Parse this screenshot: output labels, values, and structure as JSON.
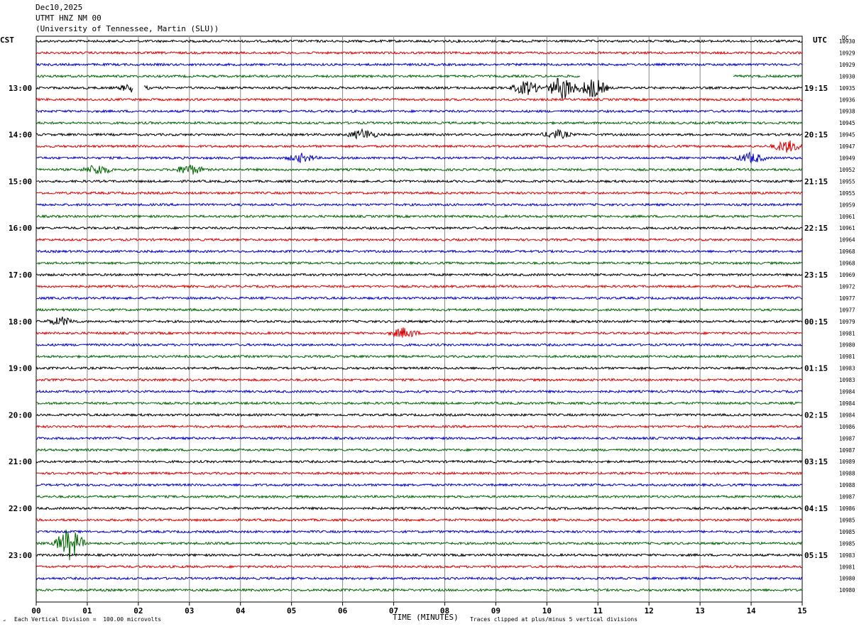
{
  "header": {
    "date": "Dec10,2025",
    "station": "UTMT HNZ NM 00",
    "network": "(University of Tennessee, Martin (SLU))"
  },
  "left_timezone": "CST",
  "right_timezone": "UTC",
  "dc_label": "DC",
  "footer": {
    "scale_text": "Each Vertical Division =  100.00 microvolts",
    "xlabel": "TIME (MINUTES)",
    "clip_text": "Traces clipped at plus/minus 5 vertical divisions"
  },
  "chart_data": {
    "type": "line",
    "xlabel": "TIME (MINUTES)",
    "xlim": [
      0,
      15
    ],
    "x_ticks": [
      "00",
      "01",
      "02",
      "03",
      "04",
      "05",
      "06",
      "07",
      "08",
      "09",
      "10",
      "11",
      "12",
      "13",
      "14",
      "15"
    ],
    "rows_per_hour": 4,
    "minutes_per_row": 15,
    "trace_colors": [
      "#000000",
      "#dd0000",
      "#0000cc",
      "#006600"
    ],
    "left_hour_labels": [
      "13:00",
      "14:00",
      "15:00",
      "16:00",
      "17:00",
      "18:00",
      "19:00",
      "20:00",
      "21:00",
      "22:00",
      "23:00"
    ],
    "right_hour_labels": [
      "19:15",
      "20:15",
      "21:15",
      "22:15",
      "23:15",
      "00:15",
      "01:15",
      "02:15",
      "03:15",
      "04:15",
      "05:15"
    ],
    "hour_label_first_row": 4,
    "dc_values": [
      "10930",
      "10929",
      "10929",
      "10930",
      "10935",
      "10936",
      "10938",
      "10945",
      "10945",
      "10947",
      "10949",
      "10952",
      "10955",
      "10955",
      "10959",
      "10961",
      "10961",
      "10964",
      "10968",
      "10968",
      "10969",
      "10972",
      "10977",
      "10977",
      "10979",
      "10981",
      "10980",
      "10981",
      "10983",
      "10983",
      "10984",
      "10984",
      "10984",
      "10986",
      "10987",
      "10987",
      "10989",
      "10988",
      "10988",
      "10987",
      "10986",
      "10985",
      "10985",
      "10985",
      "10983",
      "10981",
      "10980",
      "10980"
    ],
    "trace_gaps": [
      {
        "row": 3,
        "from_minute": 10.65,
        "to_minute": 13.65
      },
      {
        "row": 4,
        "from_minute": 1.9,
        "to_minute": 2.1
      }
    ],
    "events": [
      {
        "row": 4,
        "minute": 9.6,
        "amplitude": 0.7
      },
      {
        "row": 4,
        "minute": 10.3,
        "amplitude": 1.2
      },
      {
        "row": 4,
        "minute": 10.9,
        "amplitude": 1.0
      },
      {
        "row": 4,
        "minute": 1.9,
        "amplitude": 0.4
      },
      {
        "row": 8,
        "minute": 6.4,
        "amplitude": 0.5
      },
      {
        "row": 8,
        "minute": 10.2,
        "amplitude": 0.4
      },
      {
        "row": 9,
        "minute": 14.7,
        "amplitude": 0.6
      },
      {
        "row": 10,
        "minute": 14.0,
        "amplitude": 0.5
      },
      {
        "row": 10,
        "minute": 5.2,
        "amplitude": 0.4
      },
      {
        "row": 11,
        "minute": 1.2,
        "amplitude": 0.5
      },
      {
        "row": 11,
        "minute": 3.0,
        "amplitude": 0.5
      },
      {
        "row": 25,
        "minute": 7.2,
        "amplitude": 0.5
      },
      {
        "row": 24,
        "minute": 0.5,
        "amplitude": 0.4
      },
      {
        "row": 43,
        "minute": 0.65,
        "amplitude": 1.6
      }
    ]
  }
}
